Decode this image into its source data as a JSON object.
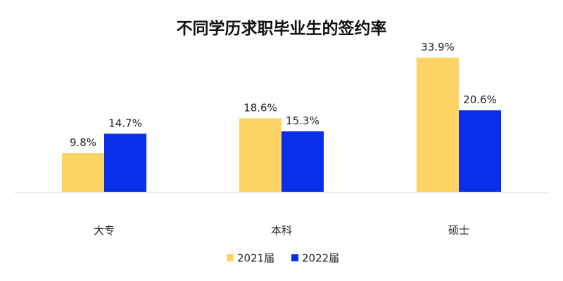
{
  "chart_data": {
    "type": "bar",
    "title": "不同学历求职毕业生的签约率",
    "xlabel": "",
    "ylabel": "",
    "categories": [
      "大专",
      "本科",
      "硕士"
    ],
    "series": [
      {
        "name": "2021届",
        "values": [
          9.8,
          18.6,
          33.9
        ],
        "labels": [
          "9.8%",
          "18.6%",
          "33.9%"
        ],
        "color": "#FDD464"
      },
      {
        "name": "2022届",
        "values": [
          14.7,
          15.3,
          20.6
        ],
        "labels": [
          "14.7%",
          "15.3%",
          "20.6%"
        ],
        "color": "#0A2FE8"
      }
    ],
    "ylim": [
      0,
      36
    ],
    "grid": false,
    "legend": "bottom-center",
    "axis_color": "#D9D9D9"
  }
}
